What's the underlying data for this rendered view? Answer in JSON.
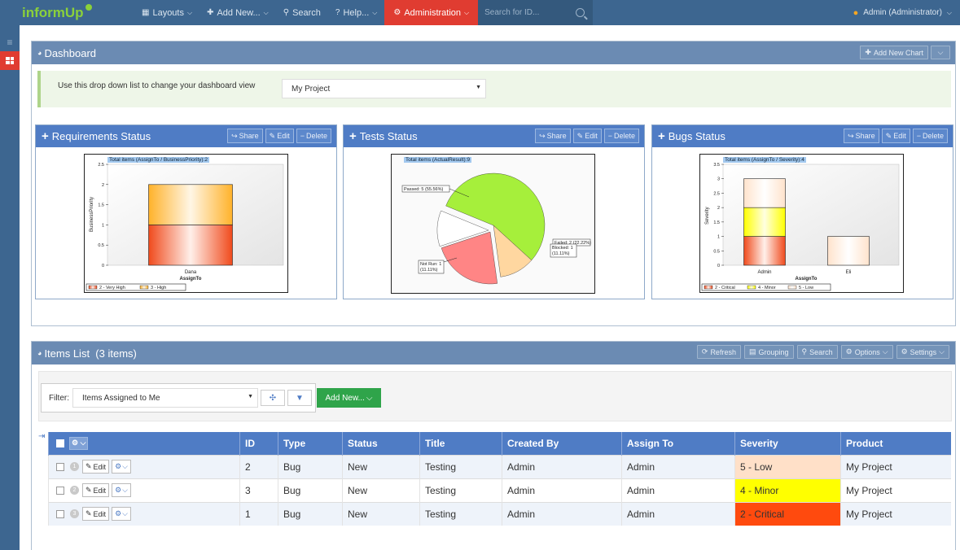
{
  "nav": {
    "logo": "informUp",
    "layouts": "Layouts",
    "add_new": "Add New...",
    "search": "Search",
    "help": "Help...",
    "administration": "Administration",
    "search_placeholder": "Search for ID...",
    "user": "Admin (Administrator)"
  },
  "dashboard": {
    "title": "Dashboard",
    "add_chart": "Add New Chart",
    "info_text": "Use this drop down list to change your dashboard view",
    "view_selected": "My Project"
  },
  "charts": {
    "buttons": {
      "share": "Share",
      "edit": "Edit",
      "delete": "Delete"
    },
    "requirements": {
      "title": "Requirements Status",
      "tag": "Total items (AssignTo / BusinessPriority):2",
      "xlabel": "AssignTo",
      "ylabel": "BusinessPriority",
      "yticks": [
        "2.5",
        "2",
        "1.5",
        "1",
        "0.5",
        "0"
      ],
      "category": "Dana",
      "legend": [
        "2 - Very High",
        "3 - High"
      ]
    },
    "tests": {
      "title": "Tests Status",
      "tag": "Total items (ActualResult):9",
      "labels": [
        "Passed: 5 (55.56%)",
        "Failed: 2 (22.22%)",
        "Blocked: 1 (11.11%)",
        "Not Run: 1 (11.11%)"
      ]
    },
    "bugs": {
      "title": "Bugs Status",
      "tag": "Total items (AssignTo / Severity):4",
      "xlabel": "AssignTo",
      "ylabel": "Severity",
      "yticks": [
        "3.5",
        "3",
        "2.5",
        "2",
        "1.5",
        "1",
        "0.5",
        "0"
      ],
      "categories": [
        "Admin",
        "Eli"
      ],
      "legend": [
        "2 - Critical",
        "4 - Minor",
        "5 - Low"
      ]
    }
  },
  "chart_data": [
    {
      "type": "bar",
      "title": "Requirements Status",
      "xlabel": "AssignTo",
      "ylabel": "BusinessPriority",
      "categories": [
        "Dana"
      ],
      "series": [
        {
          "name": "2 - Very High",
          "values": [
            1
          ]
        },
        {
          "name": "3 - High",
          "values": [
            1
          ]
        }
      ],
      "ylim": [
        0,
        2.5
      ],
      "stacked": true,
      "colors": [
        "#f04a1c",
        "#ffb22a"
      ]
    },
    {
      "type": "pie",
      "title": "Tests Status",
      "slices": [
        {
          "label": "Passed",
          "value": 5,
          "percent": 55.56,
          "color": "#a6ef3b"
        },
        {
          "label": "Blocked",
          "value": 1,
          "percent": 11.11,
          "color": "#ffd7a0"
        },
        {
          "label": "Failed",
          "value": 2,
          "percent": 22.22,
          "color": "#ff8585"
        },
        {
          "label": "Not Run",
          "value": 1,
          "percent": 11.11,
          "color": "#ffffff"
        }
      ]
    },
    {
      "type": "bar",
      "title": "Bugs Status",
      "xlabel": "AssignTo",
      "ylabel": "Severity",
      "categories": [
        "Admin",
        "Eli"
      ],
      "series": [
        {
          "name": "2 - Critical",
          "values": [
            1,
            0
          ]
        },
        {
          "name": "4 - Minor",
          "values": [
            1,
            0
          ]
        },
        {
          "name": "5 - Low",
          "values": [
            1,
            1
          ]
        }
      ],
      "ylim": [
        0,
        3.5
      ],
      "stacked": true,
      "colors": [
        "#f04a1c",
        "#ffff00",
        "#ffe3cc"
      ]
    }
  ],
  "items": {
    "title": "Items List",
    "count": "(3 items)",
    "buttons": {
      "refresh": "Refresh",
      "grouping": "Grouping",
      "search": "Search",
      "options": "Options",
      "settings": "Settings"
    },
    "filter_label": "Filter:",
    "filter_value": "Items Assigned to Me",
    "add_new": "Add New...",
    "columns": [
      "ID",
      "Type",
      "Status",
      "Title",
      "Created By",
      "Assign To",
      "Severity",
      "Product"
    ],
    "edit_label": "Edit",
    "rows": [
      {
        "n": "1",
        "id": "2",
        "type": "Bug",
        "status": "New",
        "title": "Testing",
        "created_by": "Admin",
        "assign_to": "Admin",
        "severity": "5 - Low",
        "severity_color": "#ffe0c8",
        "product": "My Project"
      },
      {
        "n": "2",
        "id": "3",
        "type": "Bug",
        "status": "New",
        "title": "Testing",
        "created_by": "Admin",
        "assign_to": "Admin",
        "severity": "4 - Minor",
        "severity_color": "#ffff00",
        "product": "My Project"
      },
      {
        "n": "3",
        "id": "1",
        "type": "Bug",
        "status": "New",
        "title": "Testing",
        "created_by": "Admin",
        "assign_to": "Admin",
        "severity": "2 - Critical",
        "severity_color": "#ff4a0e",
        "product": "My Project"
      }
    ]
  }
}
